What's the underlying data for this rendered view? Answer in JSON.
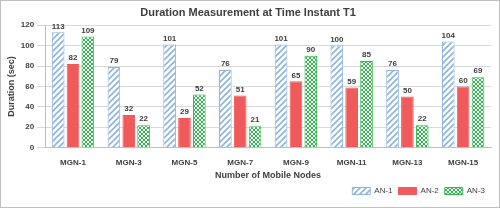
{
  "chart_data": {
    "type": "bar",
    "title": "Duration Measurement at Time Instant T1",
    "x_label": "Number of Mobile Nodes",
    "y_label": "Duration (sec)",
    "categories": [
      "MGN-1",
      "MGN-3",
      "MGN-5",
      "MGN-7",
      "MGN-9",
      "MGN-11",
      "MGN-13",
      "MGN-15"
    ],
    "series": [
      {
        "name": "AN-1",
        "color": "#8db3e2",
        "values": [
          113,
          79,
          101,
          76,
          101,
          100,
          76,
          104
        ]
      },
      {
        "name": "AN-2",
        "color": "#f05a5a",
        "values": [
          82,
          32,
          29,
          51,
          65,
          59,
          50,
          60
        ]
      },
      {
        "name": "AN-3",
        "color": "#2eb84c",
        "values": [
          109,
          22,
          52,
          21,
          90,
          85,
          22,
          69
        ]
      }
    ],
    "ylim": [
      0,
      120
    ],
    "yticks": [
      0,
      20,
      40,
      60,
      80,
      100,
      120
    ],
    "grid": true,
    "legend": "bottom-right",
    "data_labels": true
  }
}
